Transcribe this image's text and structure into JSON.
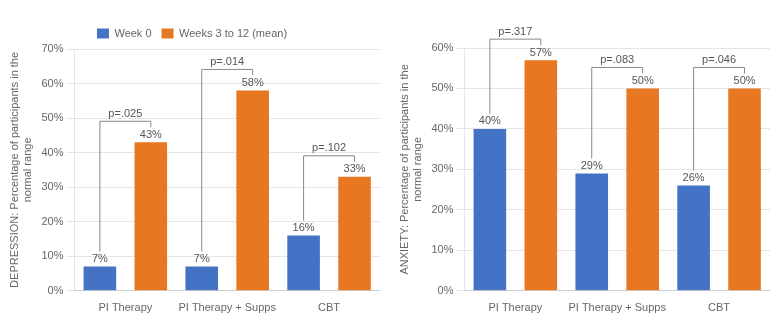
{
  "chart_data": [
    {
      "type": "bar",
      "categories": [
        "PI Therapy",
        "PI Therapy + Supps",
        "CBT"
      ],
      "series": [
        {
          "name": "Week 0",
          "color": "#4472C4",
          "values": [
            7,
            7,
            16
          ],
          "value_labels": [
            "7%",
            "7%",
            "16%"
          ]
        },
        {
          "name": "Weeks 3 to 12 (mean)",
          "color": "#E87722",
          "values": [
            43,
            58,
            33
          ],
          "value_labels": [
            "43%",
            "58%",
            "33%"
          ]
        }
      ],
      "annotations": [
        "p=.025",
        "p=.014",
        "p=.102"
      ],
      "ylabel": "DEPRESSION: Percentage of participants in the\nnormal range",
      "ylim": [
        0,
        70
      ],
      "yticks": [
        {
          "value": 0,
          "label": "0%"
        },
        {
          "value": 10,
          "label": "10%"
        },
        {
          "value": 20,
          "label": "20%"
        },
        {
          "value": 30,
          "label": "30%"
        },
        {
          "value": 40,
          "label": "40%"
        },
        {
          "value": 50,
          "label": "50%"
        },
        {
          "value": 60,
          "label": "60%"
        },
        {
          "value": 70,
          "label": "70%"
        }
      ],
      "grid": true,
      "data_labels": true,
      "legend": "top"
    },
    {
      "type": "bar",
      "categories": [
        "PI Therapy",
        "PI Therapy + Supps",
        "CBT"
      ],
      "series": [
        {
          "name": "Week 0",
          "color": "#4472C4",
          "values": [
            40,
            29,
            26
          ],
          "value_labels": [
            "40%",
            "29%",
            "26%"
          ]
        },
        {
          "name": "Weeks 3 to 12 (mean)",
          "color": "#E87722",
          "values": [
            57,
            50,
            50
          ],
          "value_labels": [
            "57%",
            "50%",
            "50%"
          ]
        }
      ],
      "annotations": [
        "p=.317",
        "p=.083",
        "p=.046"
      ],
      "ylabel": "ANXIETY: Percentage of participants in the\nnormal range",
      "ylim": [
        0,
        60
      ],
      "yticks": [
        {
          "value": 0,
          "label": "0%"
        },
        {
          "value": 10,
          "label": "10%"
        },
        {
          "value": 20,
          "label": "20%"
        },
        {
          "value": 30,
          "label": "30%"
        },
        {
          "value": 40,
          "label": "40%"
        },
        {
          "value": 50,
          "label": "50%"
        },
        {
          "value": 60,
          "label": "60%"
        }
      ],
      "grid": true,
      "data_labels": true
    }
  ]
}
